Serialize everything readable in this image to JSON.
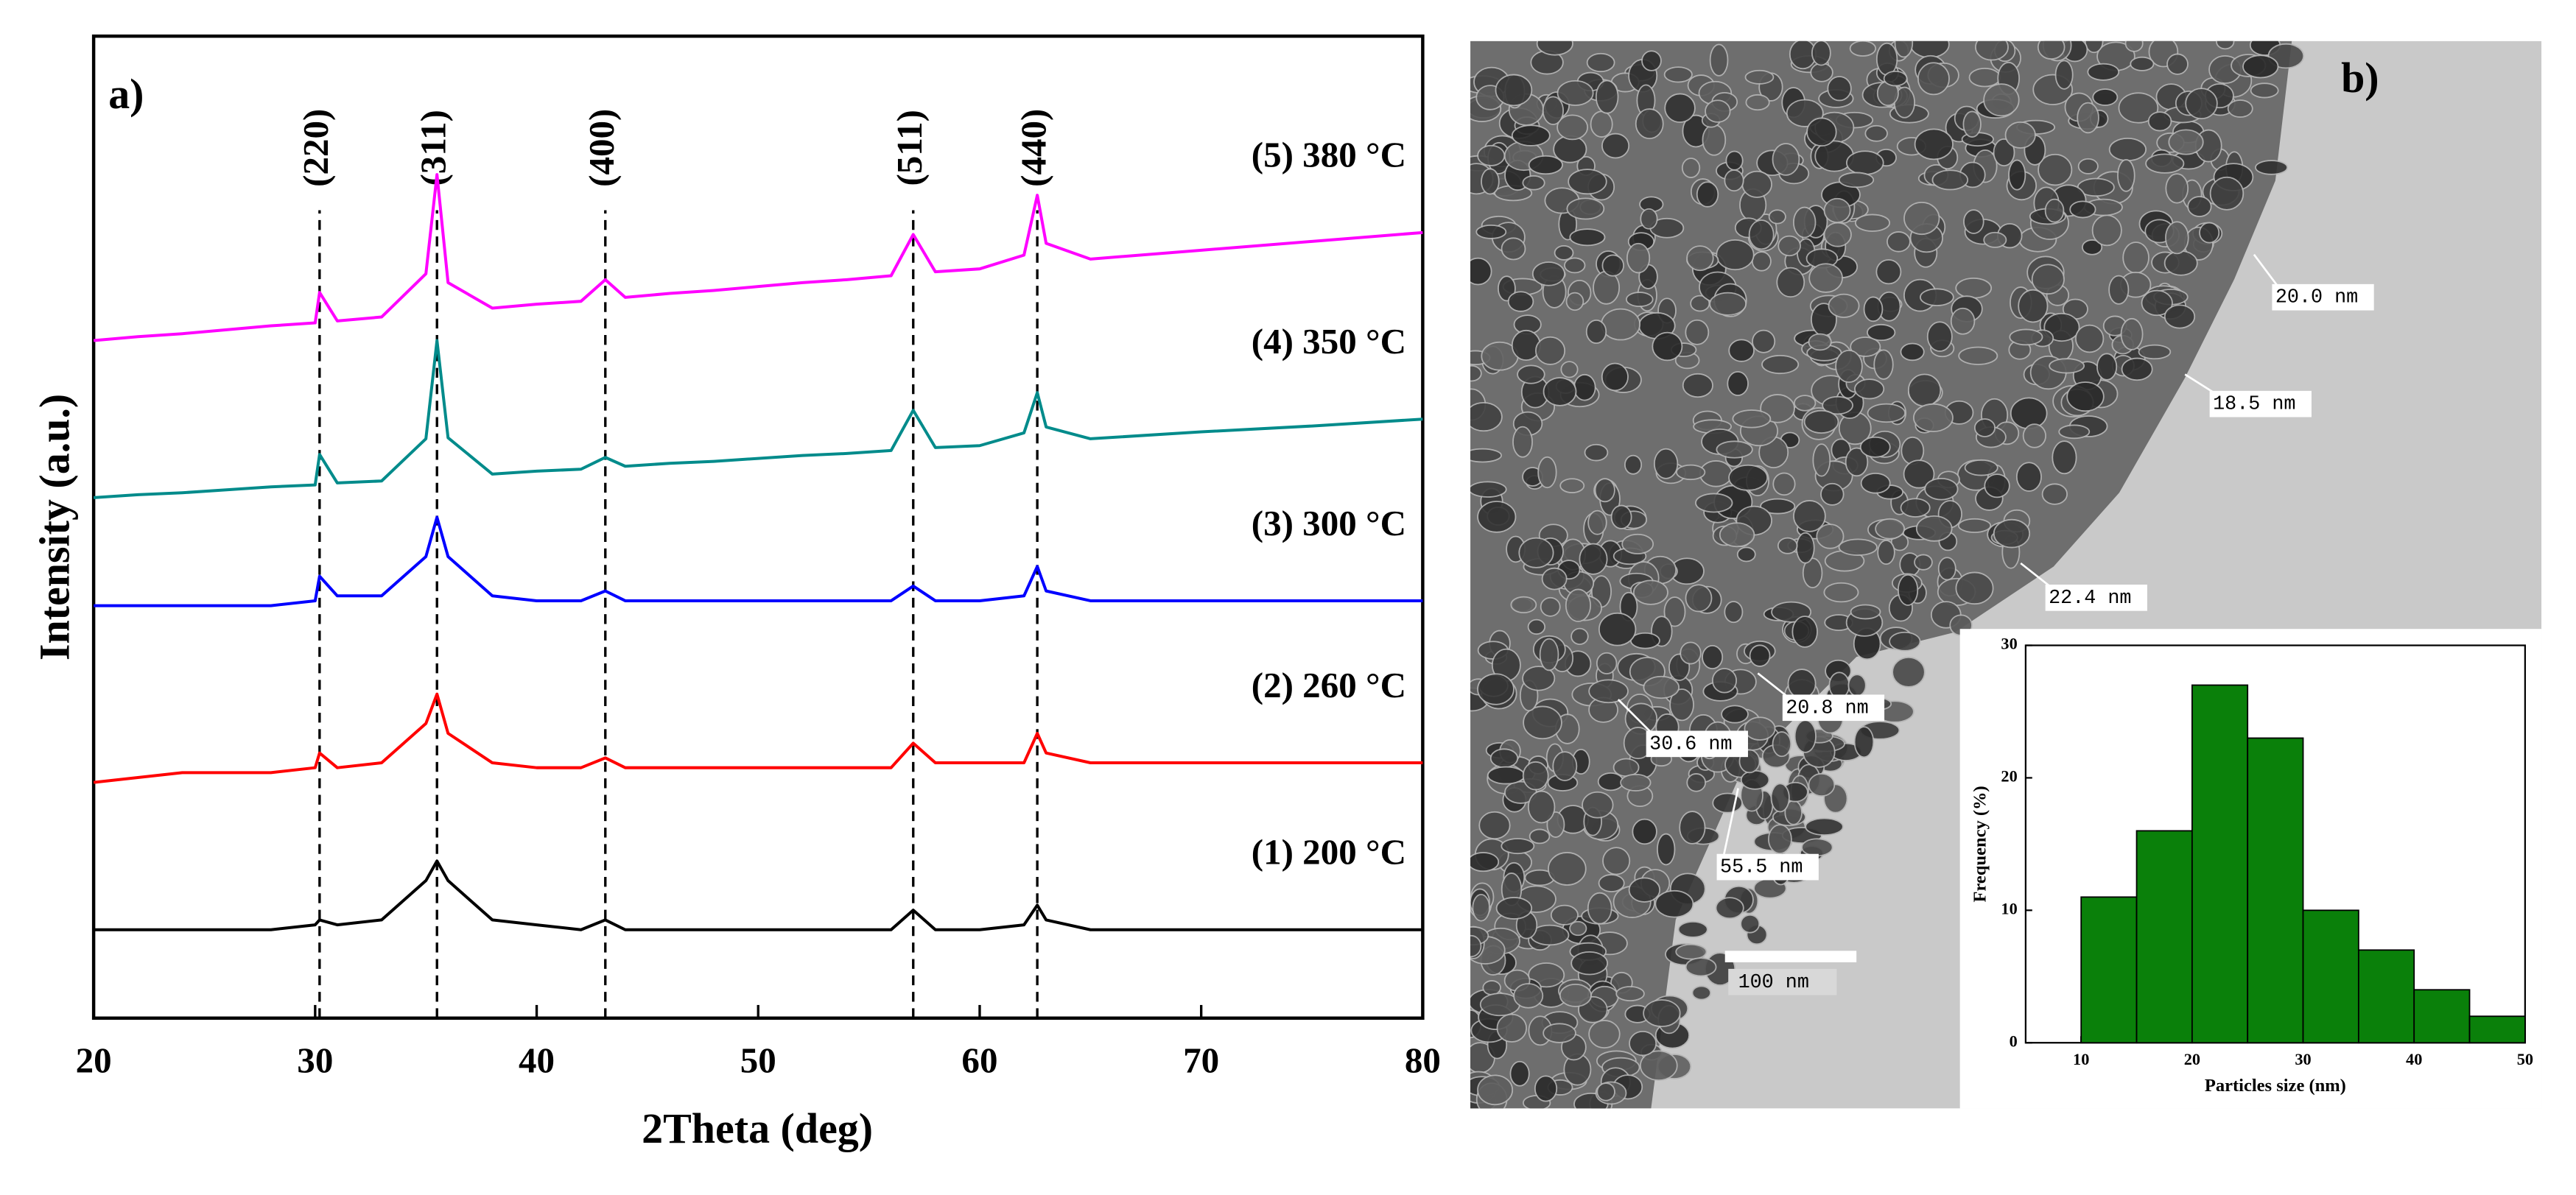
{
  "chart_data": [
    {
      "type": "line",
      "label": "a)",
      "x_label": "2Theta (deg)",
      "y_label": "Intensity (a.u.)",
      "xlim": [
        20,
        80
      ],
      "xticks": [
        20,
        30,
        40,
        50,
        60,
        70,
        80
      ],
      "ylim": [
        0,
        100
      ],
      "x": [
        20,
        22,
        24,
        26,
        28,
        30,
        30.2,
        31,
        33,
        35,
        35.5,
        36,
        38,
        40,
        42,
        43.1,
        44,
        46,
        48,
        50,
        52,
        54,
        56,
        57,
        58,
        60,
        62,
        62.6,
        63,
        65,
        70,
        75,
        80
      ],
      "series": [
        {
          "name": "(1) 200 °C",
          "color": "#000000",
          "values": [
            9,
            9,
            9,
            9,
            9,
            9.5,
            10,
            9.5,
            10,
            14,
            16,
            14,
            10,
            9.5,
            9,
            10,
            9,
            9,
            9,
            9,
            9,
            9,
            9,
            11,
            9,
            9,
            9.5,
            11.5,
            10,
            9,
            9,
            9,
            9
          ]
        },
        {
          "name": "(2) 260 °C",
          "color": "#ff0000",
          "values": [
            24,
            24.5,
            25,
            25,
            25,
            25.5,
            27,
            25.5,
            26,
            30,
            33,
            29,
            26,
            25.5,
            25.5,
            26.5,
            25.5,
            25.5,
            25.5,
            25.5,
            25.5,
            25.5,
            25.5,
            28,
            26,
            26,
            26,
            29,
            27,
            26,
            26,
            26,
            26
          ]
        },
        {
          "name": "(3) 300 °C",
          "color": "#0000ff",
          "values": [
            42,
            42,
            42,
            42,
            42,
            42.5,
            45,
            43,
            43,
            47,
            51,
            47,
            43,
            42.5,
            42.5,
            43.5,
            42.5,
            42.5,
            42.5,
            42.5,
            42.5,
            42.5,
            42.5,
            44,
            42.5,
            42.5,
            43,
            46,
            43.5,
            42.5,
            42.5,
            42.5,
            42.5
          ]
        },
        {
          "name": "(4) 350 °C",
          "color": "#008b8b",
          "values": [
            53,
            53.3,
            53.5,
            53.8,
            54.1,
            54.3,
            57.4,
            54.5,
            54.7,
            59,
            69,
            59.1,
            55.4,
            55.7,
            55.9,
            57.1,
            56.2,
            56.5,
            56.7,
            57,
            57.3,
            57.5,
            57.8,
            61.9,
            58.1,
            58.3,
            59.6,
            63.7,
            60.2,
            59,
            59.7,
            60.3,
            61
          ]
        },
        {
          "name": "(5) 380 °C",
          "color": "#ff00ff",
          "values": [
            69,
            69.4,
            69.7,
            70.1,
            70.5,
            70.8,
            73.9,
            71,
            71.4,
            75.8,
            85.9,
            74.9,
            72.3,
            72.7,
            73,
            75.2,
            73.4,
            73.8,
            74.1,
            74.5,
            74.9,
            75.2,
            75.6,
            79.8,
            76,
            76.3,
            77.7,
            83.8,
            78.9,
            77.3,
            78.2,
            79.1,
            80
          ]
        }
      ],
      "peaks": [
        {
          "label": "(220)",
          "x": 30.2
        },
        {
          "label": "(311)",
          "x": 35.5
        },
        {
          "label": "(400)",
          "x": 43.1
        },
        {
          "label": "(511)",
          "x": 57
        },
        {
          "label": "(440)",
          "x": 62.6
        }
      ]
    },
    {
      "type": "histogram",
      "x_label": "Particles size (nm)",
      "y_label": "Frequency (%)",
      "color": "#0a800a",
      "bins": [
        10,
        15,
        20,
        25,
        30,
        35,
        40,
        45,
        50
      ],
      "values": [
        11,
        16,
        27,
        23,
        10,
        7,
        4,
        2
      ],
      "xlim": [
        5,
        50
      ],
      "xticks": [
        10,
        20,
        30,
        40,
        50
      ],
      "ylim": [
        0,
        30
      ],
      "yticks": [
        0,
        10,
        20,
        30
      ]
    }
  ],
  "image": {
    "label": "b)",
    "annotations": [
      "20.0 nm",
      "18.5 nm",
      "22.4 nm",
      "20.8 nm",
      "30.6 nm",
      "55.5 nm"
    ],
    "scale_bar": "100 nm"
  }
}
